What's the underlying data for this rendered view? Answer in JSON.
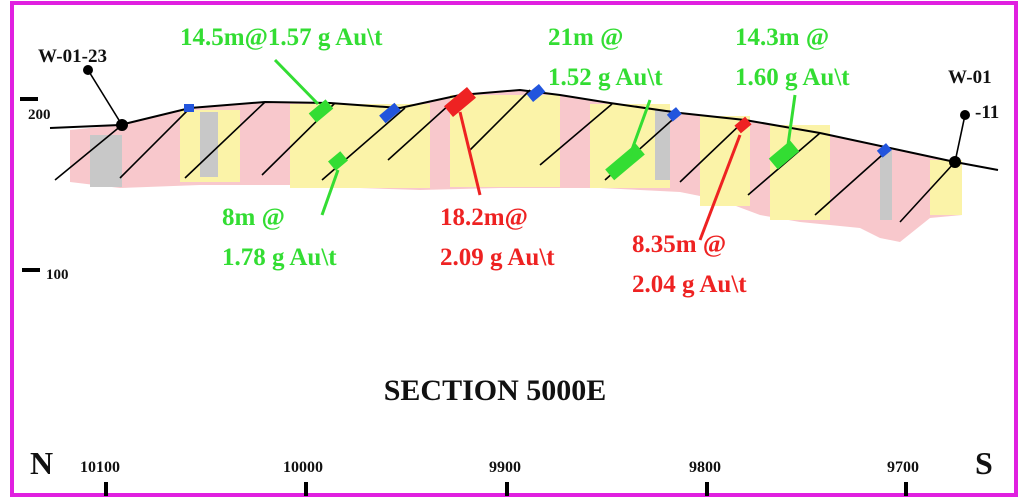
{
  "section": {
    "title": "SECTION 5000E",
    "north": "N",
    "south": "S",
    "elevations": [
      "200",
      "100"
    ],
    "eastings": [
      "10100",
      "10000",
      "9900",
      "9800",
      "9700"
    ],
    "holes": [
      {
        "label": "W-01-23"
      },
      {
        "label": "W-01",
        "label2": "-11"
      }
    ],
    "intercepts": [
      {
        "line1": "14.5m@1.57 g Au\\t"
      },
      {
        "line1": "21m @",
        "line2": "1.52 g Au\\t"
      },
      {
        "line1": "14.3m @",
        "line2": "1.60 g Au\\t"
      },
      {
        "line1": "8m @",
        "line2": "1.78 g Au\\t"
      },
      {
        "line1": "18.2m@",
        "line2": "2.09 g Au\\t"
      },
      {
        "line1": "8.35m @",
        "line2": "2.04 g Au\\t"
      }
    ]
  }
}
